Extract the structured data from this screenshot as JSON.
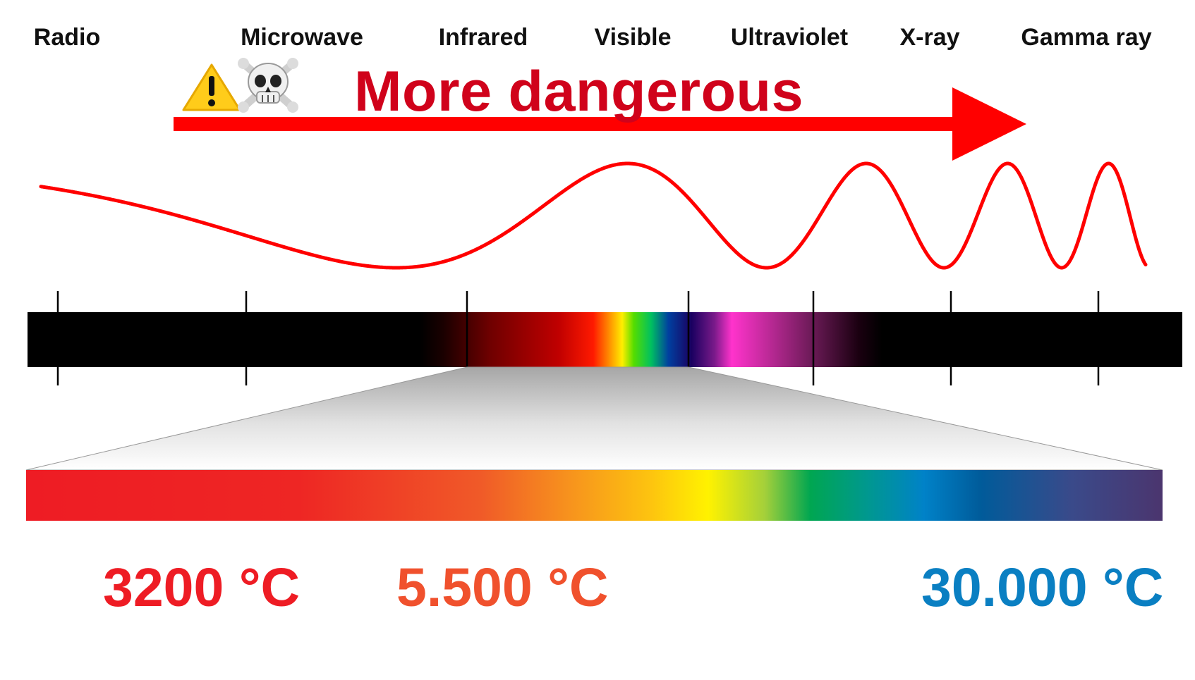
{
  "bands": [
    {
      "id": "radio",
      "label": "Radio"
    },
    {
      "id": "microwave",
      "label": "Microwave"
    },
    {
      "id": "infrared",
      "label": "Infrared"
    },
    {
      "id": "visible",
      "label": "Visible"
    },
    {
      "id": "ultraviolet",
      "label": "Ultraviolet"
    },
    {
      "id": "xray",
      "label": "X-ray"
    },
    {
      "id": "gamma",
      "label": "Gamma ray"
    }
  ],
  "danger": {
    "text": "More dangerous",
    "warning_icon": "warning-sign-icon",
    "skull_icon": "skull-crossbones-icon",
    "color": "#d0021b",
    "arrow_color": "#ff0000"
  },
  "temperatures": {
    "low": {
      "label": "3200 °C",
      "color": "#ee1c24"
    },
    "mid": {
      "label": "5.500 °C",
      "color": "#f0512d"
    },
    "high": {
      "label": "30.000 °C",
      "color": "#0a7fc2"
    }
  },
  "colors": {
    "wave": "#ff0000",
    "spectrum_bar": "#000000",
    "ticks": "#000000"
  }
}
